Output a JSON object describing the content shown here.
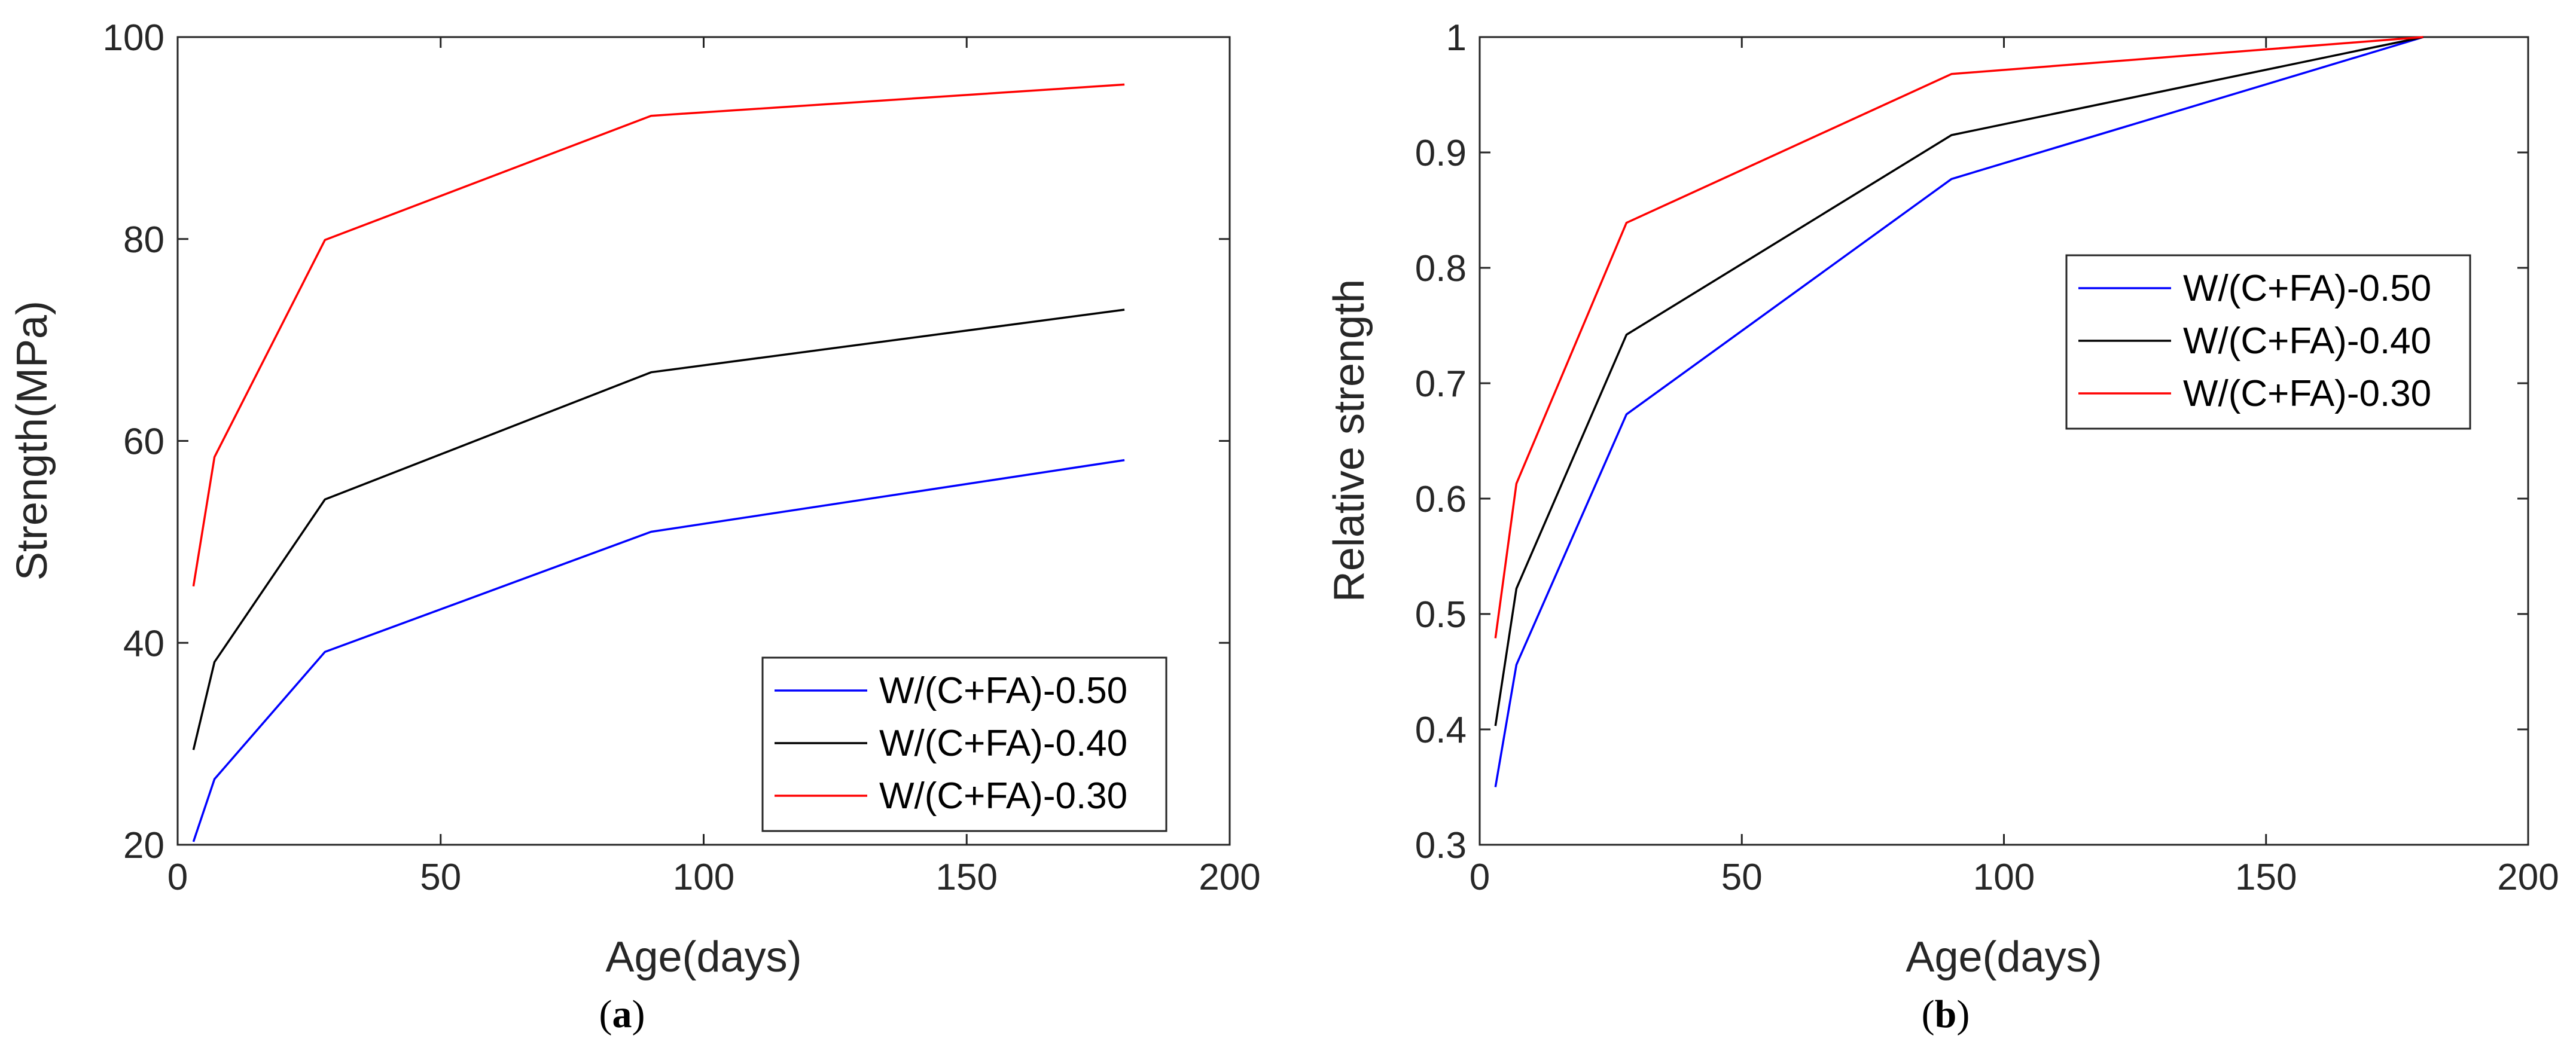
{
  "chart_data": [
    {
      "id": "a",
      "type": "line",
      "caption_open": "(",
      "caption_letter": "a",
      "caption_close": ")",
      "xlabel": "Age(days)",
      "ylabel": "Strength(MPa)",
      "xlim": [
        0,
        200
      ],
      "ylim": [
        20,
        100
      ],
      "xticks": [
        0,
        50,
        100,
        150,
        200
      ],
      "xtick_labels": [
        "0",
        "50",
        "100",
        "150",
        "200"
      ],
      "yticks": [
        20,
        40,
        60,
        80,
        100
      ],
      "ytick_labels": [
        "20",
        "40",
        "60",
        "80",
        "100"
      ],
      "legend_location": "bottom-right",
      "x": [
        3,
        7,
        28,
        90,
        180
      ],
      "series": [
        {
          "name": "W/(C+FA)-0.50",
          "color": "#0000ff",
          "values": [
            20.3,
            26.5,
            39.1,
            51.0,
            58.1
          ]
        },
        {
          "name": "W/(C+FA)-0.40",
          "color": "#000000",
          "values": [
            29.4,
            38.1,
            54.2,
            66.8,
            73.0
          ]
        },
        {
          "name": "W/(C+FA)-0.30",
          "color": "#ff0000",
          "values": [
            45.6,
            58.4,
            79.9,
            92.2,
            95.3
          ]
        }
      ]
    },
    {
      "id": "b",
      "type": "line",
      "caption_open": "(",
      "caption_letter": "b",
      "caption_close": ")",
      "xlabel": "Age(days)",
      "ylabel": "Relative strength",
      "xlim": [
        0,
        200
      ],
      "ylim": [
        0.3,
        1
      ],
      "xticks": [
        0,
        50,
        100,
        150,
        200
      ],
      "xtick_labels": [
        "0",
        "50",
        "100",
        "150",
        "200"
      ],
      "yticks": [
        0.3,
        0.4,
        0.5,
        0.6,
        0.7,
        0.8,
        0.9,
        1
      ],
      "ytick_labels": [
        "0.3",
        "0.4",
        "0.5",
        "0.6",
        "0.7",
        "0.8",
        "0.9",
        "1"
      ],
      "legend_location": "top-right",
      "x": [
        3,
        7,
        28,
        90,
        180
      ],
      "series": [
        {
          "name": "W/(C+FA)-0.50",
          "color": "#0000ff",
          "values": [
            0.35,
            0.456,
            0.673,
            0.877,
            1.0
          ]
        },
        {
          "name": "W/(C+FA)-0.40",
          "color": "#000000",
          "values": [
            0.403,
            0.522,
            0.742,
            0.915,
            1.0
          ]
        },
        {
          "name": "W/(C+FA)-0.30",
          "color": "#ff0000",
          "values": [
            0.479,
            0.613,
            0.839,
            0.968,
            1.0
          ]
        }
      ]
    }
  ]
}
